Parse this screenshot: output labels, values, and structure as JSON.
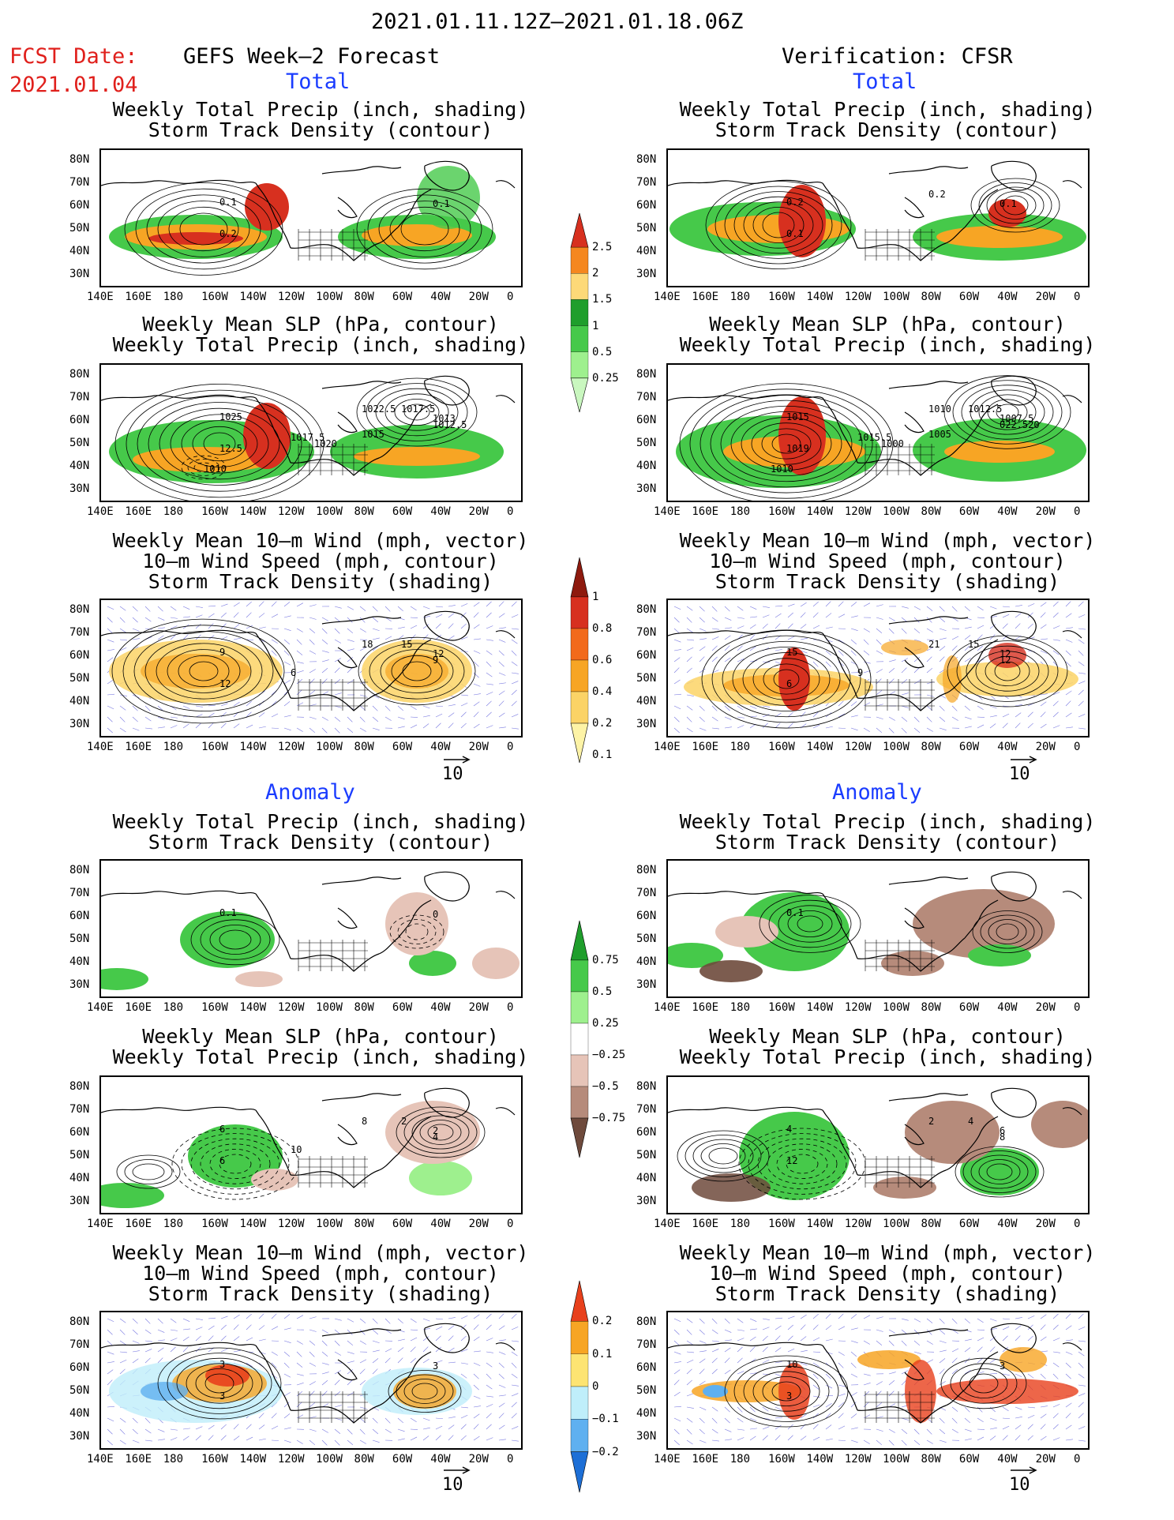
{
  "header": {
    "date_range": "2021.01.11.12Z–2021.01.18.06Z",
    "fcst_label": "FCST Date:",
    "fcst_date": "2021.01.04",
    "left_title": "GEFS Week–2 Forecast",
    "right_title": "Verification: CFSR"
  },
  "sections": {
    "total": "Total",
    "anomaly": "Anomaly"
  },
  "panel_titles": {
    "precip": [
      "Weekly Total Precip (inch, shading)",
      "Storm Track Density (contour)"
    ],
    "slp": [
      "Weekly Mean SLP (hPa, contour)",
      "Weekly Total Precip (inch, shading)"
    ],
    "wind": [
      "Weekly Mean 10–m Wind (mph, vector)",
      "10–m Wind Speed (mph, contour)",
      "Storm Track Density (shading)"
    ]
  },
  "axes": {
    "lat_labels": [
      "80N",
      "70N",
      "60N",
      "50N",
      "40N",
      "30N"
    ],
    "lon_labels": [
      "140E",
      "160E",
      "180",
      "160W",
      "140W",
      "120W",
      "100W",
      "80W",
      "60W",
      "40W",
      "20W",
      "0"
    ]
  },
  "vector_ref": "10",
  "colorbars": {
    "total_precip": {
      "labels": [
        "2.5",
        "2",
        "1.5",
        "1",
        "0.5",
        "0.25"
      ],
      "colors": [
        "#d7301f",
        "#f5871f",
        "#fdd978",
        "#1f9e2c",
        "#46c94a",
        "#9ef08e",
        "#c9f7bf"
      ]
    },
    "total_storm": {
      "labels": [
        "1",
        "0.8",
        "0.6",
        "0.4",
        "0.2",
        "0.1"
      ],
      "colors": [
        "#8e1a0e",
        "#d7301f",
        "#f26a1b",
        "#f7a524",
        "#fbd366",
        "#fdf3a6"
      ]
    },
    "anom_precip": {
      "labels": [
        "0.75",
        "0.5",
        "0.25",
        "−0.25",
        "−0.5",
        "−0.75"
      ],
      "colors": [
        "#1f9e2c",
        "#46c94a",
        "#9ef08e",
        "#ffffff",
        "#e6c4b8",
        "#b68b7b",
        "#6e4a3c"
      ]
    },
    "anom_storm": {
      "labels": [
        "0.2",
        "0.1",
        "0",
        "−0.1",
        "−0.2"
      ],
      "colors": [
        "#e8401c",
        "#f7a524",
        "#fde472",
        "#bfeefa",
        "#5fb0f0",
        "#1d6fd6"
      ]
    }
  },
  "panels": {
    "L1": {
      "labels": [
        "0.1",
        "0.1",
        "0.2"
      ]
    },
    "R1": {
      "labels": [
        "0.2",
        "0.1",
        "0.1",
        "0.2"
      ]
    },
    "L2": {
      "labels": [
        "1025",
        "1013",
        "12.5",
        "1022.5",
        "1017.5",
        "1012.5",
        "1017.5",
        "1020",
        "1015",
        "1010"
      ]
    },
    "R2": {
      "labels": [
        "1015",
        "1007.5",
        "1019",
        "1010",
        "1012.5",
        "022.520",
        "1015.5",
        "1000",
        "1005",
        "1010"
      ]
    },
    "L3": {
      "labels": [
        "9",
        "12",
        "12",
        "18",
        "15",
        "9",
        "6"
      ]
    },
    "R3": {
      "labels": [
        "15",
        "12",
        "6",
        "21",
        "15",
        "12",
        "9"
      ]
    },
    "L4": {
      "labels": [
        "0.1",
        "0"
      ]
    },
    "R4": {
      "labels": [
        "0.1"
      ]
    },
    "L5": {
      "labels": [
        "6",
        "2",
        "6",
        "8",
        "2",
        "4",
        "10"
      ]
    },
    "R5": {
      "labels": [
        "4",
        "6",
        "12",
        "2",
        "4",
        "8"
      ]
    },
    "L6": {
      "labels": [
        "3",
        "3",
        "3"
      ]
    },
    "R6": {
      "labels": [
        "10",
        "3",
        "3"
      ]
    }
  }
}
